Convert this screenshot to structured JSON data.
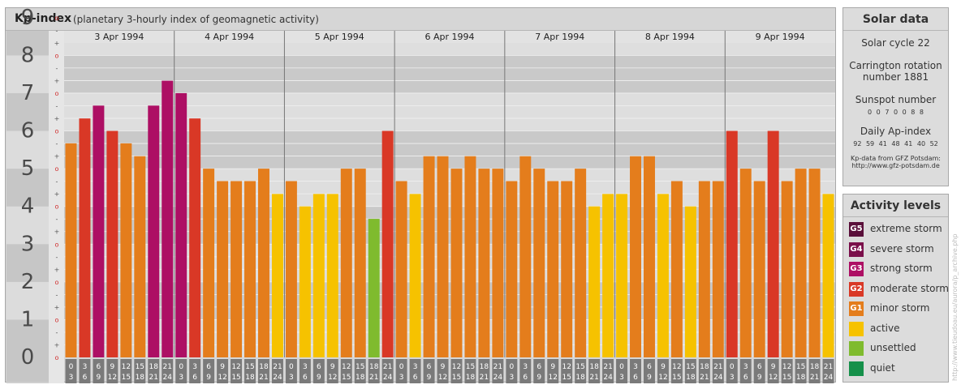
{
  "header": {
    "title": "Kp-index",
    "subtitle": "(planetary 3-hourly index of geomagnetic activity)"
  },
  "chart_data": {
    "type": "bar",
    "ylim": [
      0,
      9
    ],
    "y_ticks": [
      "0",
      "1",
      "2",
      "3",
      "4",
      "5",
      "6",
      "7",
      "8",
      "9"
    ],
    "minor_ticks": [
      "o",
      "+",
      "-",
      "o",
      "+",
      "-",
      "o",
      "+",
      "-",
      "o",
      "+",
      "-",
      "o",
      "+",
      "-",
      "o",
      "+",
      "-",
      "o",
      "+",
      "-",
      "o",
      "+",
      "-",
      "o",
      "+",
      "-",
      "o"
    ],
    "days": [
      "3 Apr 1994",
      "4 Apr 1994",
      "5 Apr 1994",
      "6 Apr 1994",
      "7 Apr 1994",
      "8 Apr 1994",
      "9 Apr 1994"
    ],
    "interval_labels": [
      [
        "0",
        "3"
      ],
      [
        "3",
        "6"
      ],
      [
        "6",
        "9"
      ],
      [
        "9",
        "12"
      ],
      [
        "12",
        "15"
      ],
      [
        "15",
        "18"
      ],
      [
        "18",
        "21"
      ],
      [
        "21",
        "24"
      ]
    ],
    "values": [
      5.67,
      6.33,
      6.67,
      6.0,
      5.67,
      5.33,
      6.67,
      7.33,
      7.0,
      6.33,
      5.0,
      4.67,
      4.67,
      4.67,
      5.0,
      4.33,
      4.67,
      4.0,
      4.33,
      4.33,
      5.0,
      5.0,
      3.67,
      6.0,
      4.67,
      4.33,
      5.33,
      5.33,
      5.0,
      5.33,
      5.0,
      5.0,
      4.67,
      5.33,
      5.0,
      4.67,
      4.67,
      5.0,
      4.0,
      4.33,
      4.33,
      5.33,
      5.33,
      4.33,
      4.67,
      4.0,
      4.67,
      4.67,
      6.0,
      5.0,
      4.67,
      6.0,
      4.67,
      5.0,
      5.0,
      4.33
    ],
    "colors": {
      "extreme": "#5a0f3a",
      "severe": "#7a0f4a",
      "strong": "#ad0f64",
      "moderate": "#d93826",
      "minor": "#e47d1c",
      "active": "#f6c200",
      "unsettled": "#7fbb2e",
      "quiet": "#15904a"
    }
  },
  "solar": {
    "title": "Solar data",
    "cycle": "Solar cycle 22",
    "carrington_1": "Carrington rotation",
    "carrington_2": "number 1881",
    "sunspot_label": "Sunspot number",
    "sunspot_values": "0 0 7 0 0 8 8",
    "ap_label": "Daily Ap-index",
    "ap_values": "92 59 41 48 41 40 52",
    "source_1": "Kp-data from GFZ Potsdam:",
    "source_2": "http://www.gfz-potsdam.de"
  },
  "activity": {
    "title": "Activity levels",
    "items": [
      {
        "badge": "G5",
        "label": "extreme storm",
        "color": "#5a0f3a"
      },
      {
        "badge": "G4",
        "label": "severe storm",
        "color": "#7a0f4a"
      },
      {
        "badge": "G3",
        "label": "strong storm",
        "color": "#ad0f64"
      },
      {
        "badge": "G2",
        "label": "moderate storm",
        "color": "#d93826"
      },
      {
        "badge": "G1",
        "label": "minor storm",
        "color": "#e47d1c"
      },
      {
        "badge": "",
        "label": "active",
        "color": "#f6c200"
      },
      {
        "badge": "",
        "label": "unsettled",
        "color": "#7fbb2e"
      },
      {
        "badge": "",
        "label": "quiet",
        "color": "#15904a"
      }
    ]
  },
  "watermark": "http://www.tieudoau.eu/aurora/p_archive.php"
}
